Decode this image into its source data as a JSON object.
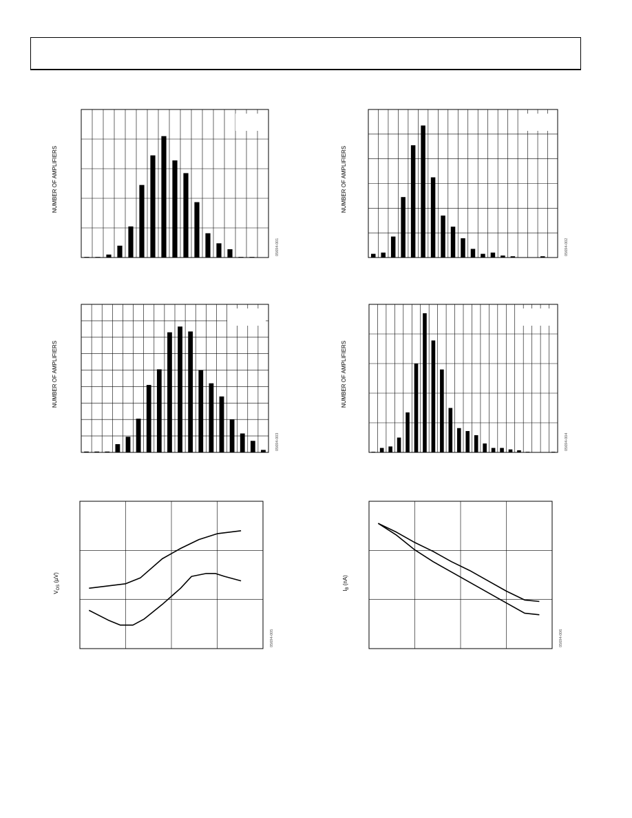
{
  "header": {
    "title": ""
  },
  "figures": [
    {
      "id": "h1",
      "fig_id": "05694-001",
      "ylabel": "NUMBER OF AMPLIFIERS"
    },
    {
      "id": "h2",
      "fig_id": "05694-002",
      "ylabel": "NUMBER OF AMPLIFIERS"
    },
    {
      "id": "h3",
      "fig_id": "05694-003",
      "ylabel": "NUMBER OF AMPLIFIERS"
    },
    {
      "id": "h4",
      "fig_id": "05694-004",
      "ylabel": "NUMBER OF AMPLIFIERS"
    },
    {
      "id": "l5",
      "fig_id": "05694-005",
      "ylabel_main": "V",
      "ylabel_sub": "OS",
      "ylabel_unit": " (µV)"
    },
    {
      "id": "l6",
      "fig_id": "05694-006",
      "ylabel_main": "I",
      "ylabel_sub": "B",
      "ylabel_unit": " (nA)"
    }
  ],
  "chart_data": [
    {
      "id": "h1",
      "type": "bar",
      "title": "",
      "xlabel": "",
      "ylabel": "NUMBER OF AMPLIFIERS",
      "grid": true,
      "ylim": [
        0,
        5
      ],
      "vertical_gridlines": 17,
      "horizontal_gridlines": 5,
      "bar_slots": 17,
      "values": [
        0.02,
        0.02,
        0.1,
        0.4,
        1.05,
        2.45,
        3.45,
        4.1,
        3.28,
        2.85,
        1.87,
        0.82,
        0.48,
        0.28,
        0.02,
        0.02,
        0
      ]
    },
    {
      "id": "h2",
      "type": "bar",
      "title": "",
      "xlabel": "",
      "ylabel": "NUMBER OF AMPLIFIERS",
      "grid": true,
      "ylim": [
        0,
        6
      ],
      "vertical_gridlines": 19,
      "horizontal_gridlines": 6,
      "bar_slots": 19,
      "values": [
        0.15,
        0.2,
        0.85,
        2.45,
        4.55,
        5.35,
        3.25,
        1.7,
        1.25,
        0.78,
        0.35,
        0.15,
        0.2,
        0.08,
        0.05,
        0,
        0,
        0.05,
        0
      ]
    },
    {
      "id": "h3",
      "type": "bar",
      "title": "",
      "xlabel": "",
      "ylabel": "NUMBER OF AMPLIFIERS",
      "grid": true,
      "ylim": [
        0,
        9
      ],
      "vertical_gridlines": 18,
      "horizontal_gridlines": 9,
      "bar_slots": 18,
      "values": [
        0.05,
        0.05,
        0.05,
        0.5,
        0.95,
        2.05,
        4.1,
        5.05,
        7.3,
        7.65,
        7.35,
        5.0,
        4.2,
        3.4,
        2.0,
        1.15,
        0.7,
        0.15
      ]
    },
    {
      "id": "h4",
      "type": "bar",
      "title": "",
      "xlabel": "",
      "ylabel": "NUMBER OF AMPLIFIERS",
      "grid": true,
      "ylim": [
        0,
        5
      ],
      "vertical_gridlines": 22,
      "horizontal_gridlines": 5,
      "bar_slots": 22,
      "values": [
        0.02,
        0.15,
        0.2,
        0.5,
        1.35,
        3.0,
        4.7,
        3.78,
        2.8,
        1.5,
        0.82,
        0.72,
        0.58,
        0.3,
        0.15,
        0.15,
        0.1,
        0.07,
        0.02,
        0,
        0,
        0.02
      ]
    },
    {
      "id": "l5",
      "type": "line",
      "title": "",
      "xlabel": "",
      "ylabel": "VOS (µV)",
      "grid": true,
      "xlim": [
        0,
        100
      ],
      "ylim": [
        0,
        100
      ],
      "vertical_gridlines": 4,
      "horizontal_gridlines": 3,
      "series": [
        {
          "x": [
            5,
            25,
            33,
            45,
            55,
            65,
            75,
            88
          ],
          "y": [
            41,
            44,
            48,
            61,
            68,
            74,
            78,
            80
          ]
        },
        {
          "x": [
            5,
            16,
            22,
            29,
            35,
            45,
            55,
            61,
            69,
            74,
            79,
            88
          ],
          "y": [
            26,
            19,
            16,
            16,
            20,
            30,
            41,
            49,
            51,
            51,
            49,
            46
          ]
        }
      ]
    },
    {
      "id": "l6",
      "type": "line",
      "title": "",
      "xlabel": "",
      "ylabel": "IB (nA)",
      "grid": true,
      "xlim": [
        0,
        100
      ],
      "ylim": [
        0,
        100
      ],
      "vertical_gridlines": 4,
      "horizontal_gridlines": 3,
      "series": [
        {
          "x": [
            5,
            15,
            25,
            35,
            45,
            55,
            65,
            75,
            85,
            93
          ],
          "y": [
            85,
            79,
            72,
            66,
            59,
            53,
            46,
            39,
            33,
            32
          ]
        },
        {
          "x": [
            5,
            15,
            25,
            35,
            45,
            55,
            65,
            75,
            85,
            93
          ],
          "y": [
            85,
            77,
            67,
            59,
            52,
            45,
            38,
            31,
            24,
            23
          ]
        }
      ]
    }
  ]
}
